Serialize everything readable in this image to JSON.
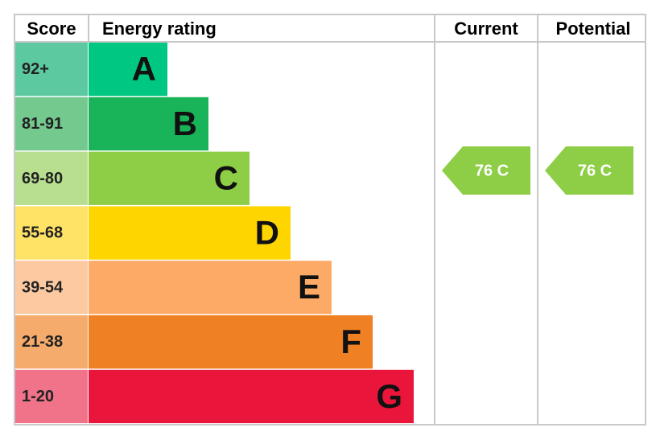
{
  "header": {
    "score": "Score",
    "energy_rating": "Energy rating",
    "current": "Current",
    "potential": "Potential"
  },
  "bands": [
    {
      "score": "92+",
      "letter": "A",
      "color": "#00c781",
      "score_color": "#5cc9a0"
    },
    {
      "score": "81-91",
      "letter": "B",
      "color": "#19b459",
      "score_color": "#74c98f"
    },
    {
      "score": "69-80",
      "letter": "C",
      "color": "#8dce46",
      "score_color": "#b7df8f"
    },
    {
      "score": "55-68",
      "letter": "D",
      "color": "#ffd500",
      "score_color": "#ffe366"
    },
    {
      "score": "39-54",
      "letter": "E",
      "color": "#fcaa65",
      "score_color": "#fdc9a0"
    },
    {
      "score": "21-38",
      "letter": "F",
      "color": "#ef8023",
      "score_color": "#f4ab6c"
    },
    {
      "score": "1-20",
      "letter": "G",
      "color": "#e9153b",
      "score_color": "#f0738a"
    }
  ],
  "current": {
    "label": "76 C",
    "color": "#8dce46"
  },
  "potential": {
    "label": "76 C",
    "color": "#8dce46"
  }
}
